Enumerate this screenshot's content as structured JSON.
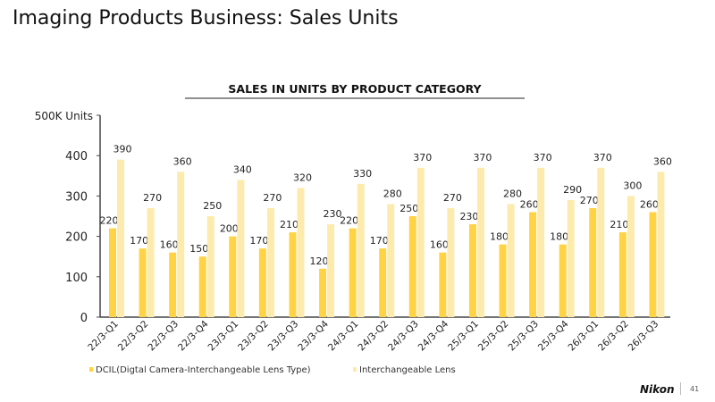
{
  "page": {
    "title": "Imaging Products Business: Sales Units",
    "logo": "Nikon",
    "page_number": "41"
  },
  "chart_data": {
    "type": "bar",
    "title": "SALES IN UNITS BY PRODUCT CATEGORY",
    "ylabel": "500K Units",
    "ylim": [
      0,
      500
    ],
    "yticks": [
      0,
      100,
      200,
      300,
      400
    ],
    "grid": false,
    "legend": "bottom",
    "categories": [
      "22/3-Q1",
      "22/3-Q2",
      "22/3-Q3",
      "22/3-Q4",
      "23/3-Q1",
      "23/3-Q2",
      "23/3-Q3",
      "23/3-Q4",
      "24/3-Q1",
      "24/3-Q2",
      "24/3-Q3",
      "24/3-Q4",
      "25/3-Q1",
      "25/3-Q2",
      "25/3-Q3",
      "25/3-Q4",
      "26/3-Q1",
      "26/3-Q2",
      "26/3-Q3"
    ],
    "series": [
      {
        "name": "DCIL(Digtal Camera-Interchangeable Lens Type)",
        "color": "#FFD343",
        "values": [
          220,
          170,
          160,
          150,
          200,
          170,
          210,
          120,
          220,
          170,
          250,
          160,
          230,
          180,
          260,
          180,
          270,
          210,
          260
        ]
      },
      {
        "name": "Interchangeable Lens",
        "color": "#FDEBAE",
        "values": [
          390,
          270,
          360,
          250,
          340,
          270,
          320,
          230,
          330,
          280,
          370,
          270,
          370,
          280,
          370,
          290,
          370,
          300,
          360
        ]
      }
    ]
  }
}
